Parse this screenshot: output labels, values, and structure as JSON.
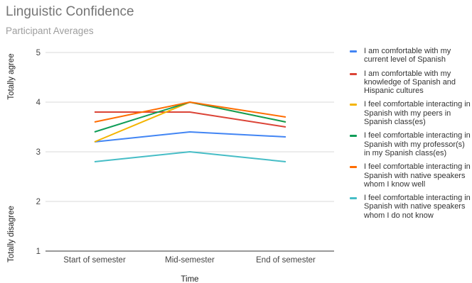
{
  "title": "Linguistic Confidence",
  "subtitle": "Participant Averages",
  "chart_data": {
    "type": "line",
    "title": "Linguistic Confidence",
    "subtitle": "Participant Averages",
    "xlabel": "Time",
    "ylabel_top": "Totally agree",
    "ylabel_bottom": "Totally disagree",
    "categories": [
      "Start of semester",
      "Mid-semester",
      "End of semester"
    ],
    "ylim": [
      1,
      5
    ],
    "yticks": [
      1,
      2,
      3,
      4,
      5
    ],
    "grid": true,
    "legend_position": "right",
    "series": [
      {
        "name": "I am comfortable with my current level of Spanish",
        "color": "#4285f4",
        "values": [
          3.2,
          3.4,
          3.3
        ]
      },
      {
        "name": "I am comfortable with my knowledge of Spanish and Hispanic cultures",
        "color": "#db4437",
        "values": [
          3.8,
          3.8,
          3.5
        ]
      },
      {
        "name": "I feel comfortable interacting in Spanish with my peers in Spanish class(es)",
        "color": "#f4b400",
        "values": [
          3.2,
          4.0,
          3.6
        ]
      },
      {
        "name": "I feel comfortable interacting in Spanish with my professor(s) in my Spanish class(es)",
        "color": "#0f9d58",
        "values": [
          3.4,
          4.0,
          3.6
        ]
      },
      {
        "name": "I feel comfortable interacting in Spanish with native speakers whom I know well",
        "color": "#ff6d01",
        "values": [
          3.6,
          4.0,
          3.7
        ]
      },
      {
        "name": "I feel comfortable interacting in Spanish with native speakers whom I do not know",
        "color": "#46bdc6",
        "values": [
          2.8,
          3.0,
          2.8
        ]
      }
    ]
  }
}
